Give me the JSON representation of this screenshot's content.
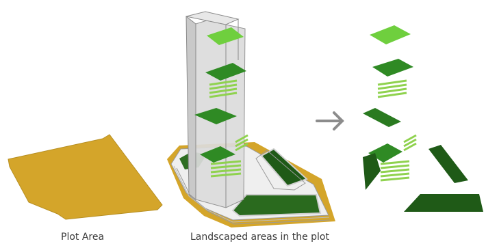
{
  "captions": {
    "plot_area": "Plot Area",
    "landscaped": "Landscaped areas in the plot"
  },
  "colors": {
    "plot": "#d4a52a",
    "light_green": "#6fcf3e",
    "mid_green": "#3d9b2c",
    "dark_green": "#1f5a17",
    "stripe_green": "#8fd24e",
    "building": "#d9d9d9",
    "arrow": "#8c8c8c"
  },
  "icons": [
    "arrow-right-icon"
  ]
}
